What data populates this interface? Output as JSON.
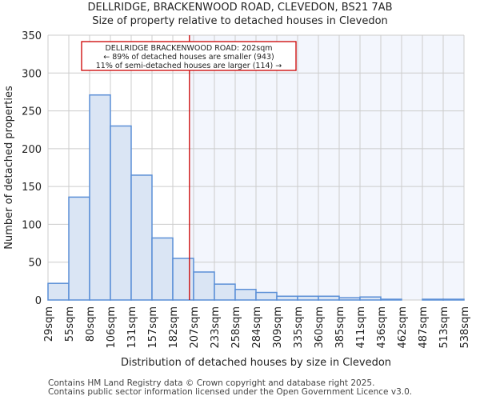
{
  "chart_data": {
    "type": "bar",
    "title": "DELLRIDGE, BRACKENWOOD ROAD, CLEVEDON, BS21 7AB",
    "subtitle": "Size of property relative to detached houses in Clevedon",
    "xlabel": "Distribution of detached houses by size in Clevedon",
    "ylabel": "Number of detached properties",
    "bin_edges": [
      29,
      55,
      80,
      106,
      131,
      157,
      182,
      207,
      233,
      258,
      284,
      309,
      335,
      360,
      385,
      411,
      436,
      462,
      487,
      513,
      538
    ],
    "tick_labels": [
      "29sqm",
      "55sqm",
      "80sqm",
      "106sqm",
      "131sqm",
      "157sqm",
      "182sqm",
      "207sqm",
      "233sqm",
      "258sqm",
      "284sqm",
      "309sqm",
      "335sqm",
      "360sqm",
      "385sqm",
      "411sqm",
      "436sqm",
      "462sqm",
      "487sqm",
      "513sqm",
      "538sqm"
    ],
    "values": [
      22,
      136,
      271,
      230,
      165,
      82,
      55,
      37,
      21,
      14,
      10,
      5,
      5,
      5,
      3,
      4,
      1,
      0,
      1,
      1
    ],
    "ylim": [
      0,
      350
    ],
    "yticks": [
      0,
      50,
      100,
      150,
      200,
      250,
      300,
      350
    ],
    "grid": true,
    "marker_value": 202,
    "annotation": [
      "DELLRIDGE BRACKENWOOD ROAD: 202sqm",
      "← 89% of detached houses are smaller (943)",
      "11% of semi-detached houses are larger (114) →"
    ],
    "colors": {
      "bar_fill": "#dae5f4",
      "bar_edge": "#5b8fd6",
      "marker": "#cc0000",
      "highlight_bg": "#f3f6fd",
      "grid": "#cccccc"
    }
  },
  "footer": [
    "Contains HM Land Registry data © Crown copyright and database right 2025.",
    "Contains public sector information licensed under the Open Government Licence v3.0."
  ]
}
